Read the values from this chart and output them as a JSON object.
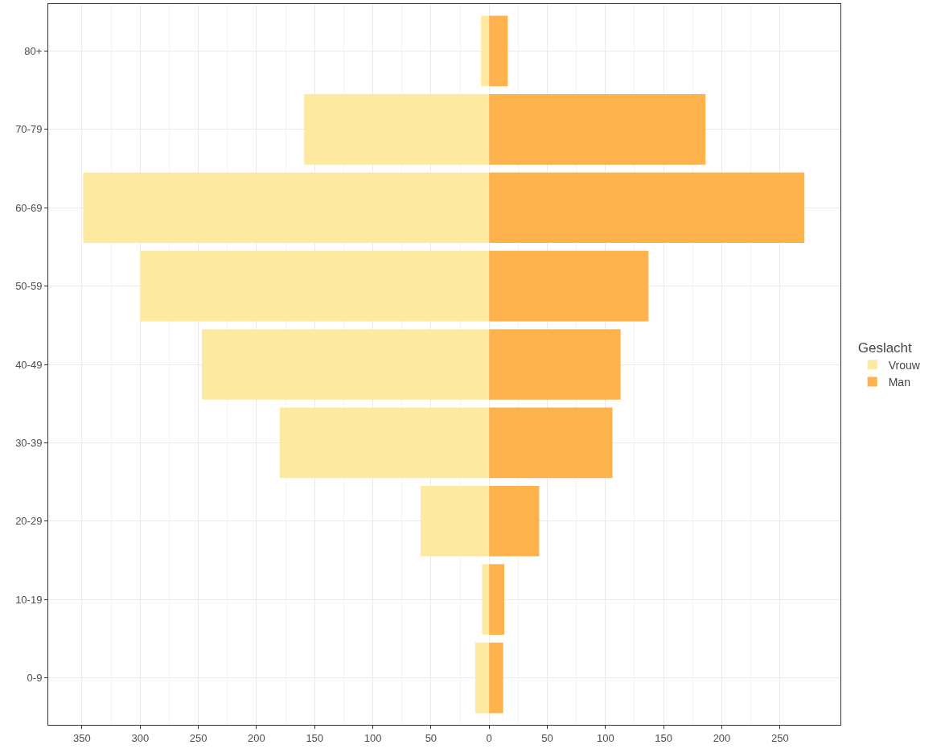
{
  "chart_data": {
    "type": "bar",
    "orientation": "horizontal",
    "stacked": true,
    "legend_title": "Geslacht",
    "legend": "right",
    "grid": true,
    "categories": [
      "80+",
      "70-79",
      "60-69",
      "50-59",
      "40-49",
      "30-39",
      "20-29",
      "10-19",
      "0-9"
    ],
    "series": [
      {
        "name": "Vrouw",
        "color": "#fee9a0",
        "values": [
          -7,
          -159,
          -349,
          -300,
          -247,
          -180,
          -59,
          -6,
          -12
        ]
      },
      {
        "name": "Man",
        "color": "#feb24c",
        "values": [
          16,
          186,
          271,
          137,
          113,
          106,
          43,
          13,
          12
        ]
      }
    ],
    "xlim": [
      -379,
      302
    ],
    "xticks": [
      {
        "value": -350,
        "label": "350"
      },
      {
        "value": -300,
        "label": "300"
      },
      {
        "value": -250,
        "label": "250"
      },
      {
        "value": -200,
        "label": "200"
      },
      {
        "value": -150,
        "label": "150"
      },
      {
        "value": -100,
        "label": "100"
      },
      {
        "value": -50,
        "label": "50"
      },
      0,
      50,
      100,
      150,
      200,
      250
    ]
  }
}
